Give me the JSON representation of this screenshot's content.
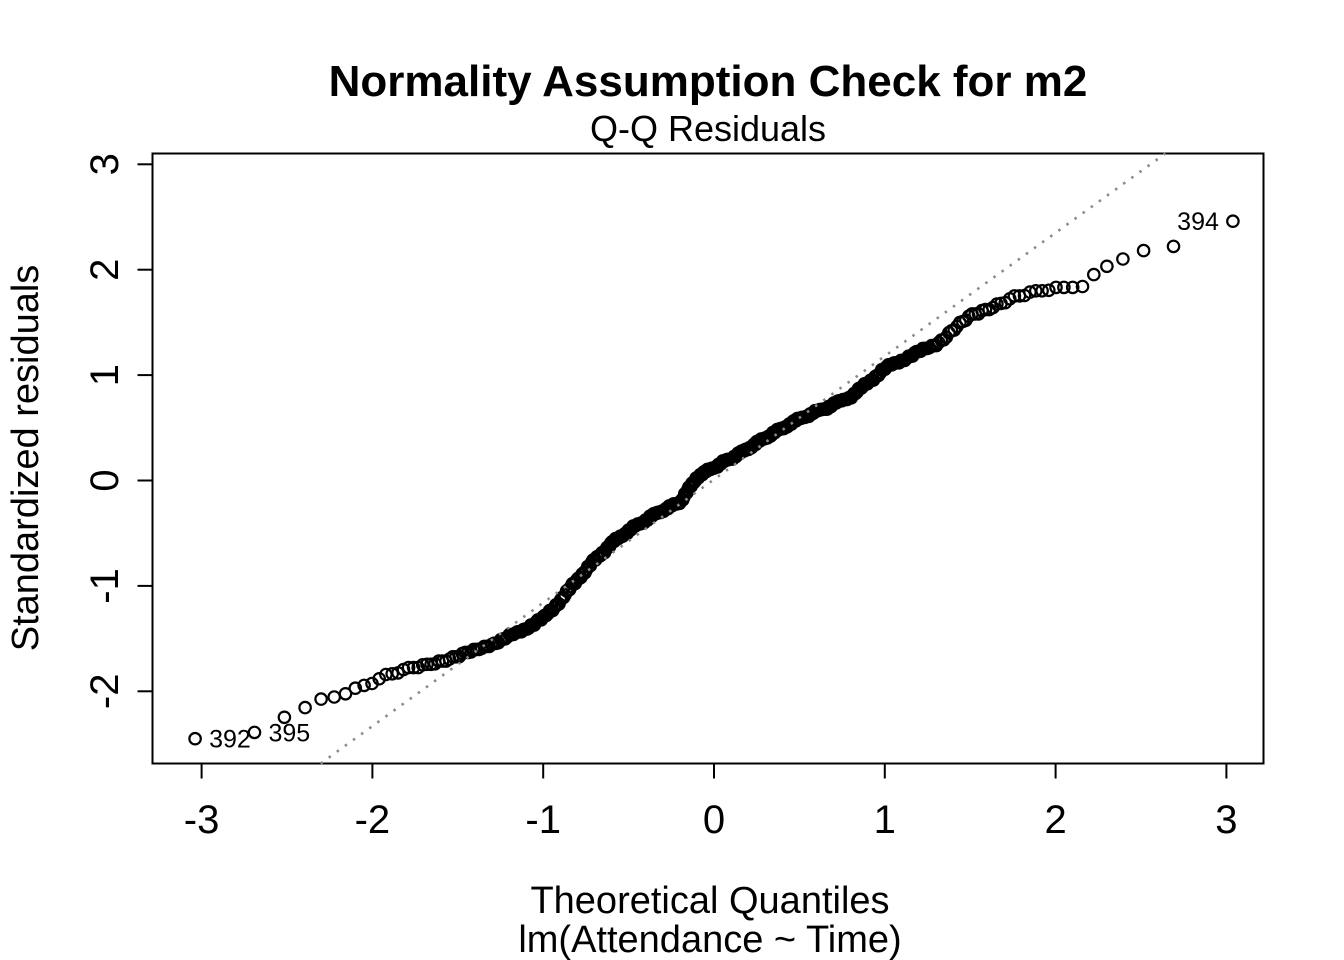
{
  "page": {
    "background": "#ffffff",
    "foreground": "#000000"
  },
  "chart_data": {
    "type": "scatter",
    "subtype": "qq-plot",
    "title": "Normality Assumption Check for m2",
    "subtitle": "Q-Q Residuals",
    "xlabel": "Theoretical Quantiles",
    "xlabel_line2": "lm(Attendance ~ Time)",
    "ylabel": "Standardized residuals",
    "x_ticks": [
      -3,
      -2,
      -1,
      0,
      1,
      2,
      3
    ],
    "y_ticks": [
      -2,
      -1,
      0,
      1,
      2,
      3
    ],
    "xlim": [
      -3.29,
      3.21
    ],
    "ylim": [
      -2.68,
      3.1
    ],
    "grid": false,
    "legend": null,
    "n_points": 420,
    "point_style": {
      "shape": "open-circle",
      "color": "#000000",
      "radius_px": 5.7,
      "stroke_px": 2.2
    },
    "reference_line": {
      "slope": 1.17,
      "intercept": 0.01,
      "style": "dotted",
      "color": "#8a8a8a"
    },
    "curve_anchors": [
      [
        -3.3,
        -2.49
      ],
      [
        -2.97,
        -2.45
      ],
      [
        -2.8,
        -2.42
      ],
      [
        -2.67,
        -2.39
      ],
      [
        -2.5,
        -2.22
      ],
      [
        -2.38,
        -2.15
      ],
      [
        -2.28,
        -2.06
      ],
      [
        -2.18,
        -2.02
      ],
      [
        -2.06,
        -1.95
      ],
      [
        -1.95,
        -1.87
      ],
      [
        -1.85,
        -1.82
      ],
      [
        -1.7,
        -1.76
      ],
      [
        -1.55,
        -1.69
      ],
      [
        -1.4,
        -1.62
      ],
      [
        -1.28,
        -1.54
      ],
      [
        -1.15,
        -1.45
      ],
      [
        -1.0,
        -1.31
      ],
      [
        -0.9,
        -1.14
      ],
      [
        -0.8,
        -0.94
      ],
      [
        -0.7,
        -0.76
      ],
      [
        -0.6,
        -0.6
      ],
      [
        -0.5,
        -0.48
      ],
      [
        -0.35,
        -0.33
      ],
      [
        -0.2,
        -0.21
      ],
      [
        -0.1,
        0.03
      ],
      [
        0.0,
        0.12
      ],
      [
        0.15,
        0.25
      ],
      [
        0.3,
        0.4
      ],
      [
        0.5,
        0.58
      ],
      [
        0.65,
        0.68
      ],
      [
        0.8,
        0.79
      ],
      [
        1.0,
        1.06
      ],
      [
        1.15,
        1.18
      ],
      [
        1.3,
        1.29
      ],
      [
        1.5,
        1.56
      ],
      [
        1.6,
        1.63
      ],
      [
        1.75,
        1.73
      ],
      [
        1.9,
        1.79
      ],
      [
        2.0,
        1.82
      ],
      [
        2.17,
        1.85
      ],
      [
        2.25,
        2.0
      ],
      [
        2.35,
        2.09
      ],
      [
        2.47,
        2.17
      ],
      [
        2.65,
        2.2
      ],
      [
        2.85,
        2.26
      ],
      [
        2.98,
        2.46
      ],
      [
        3.25,
        2.55
      ]
    ],
    "labeled_points": [
      {
        "label": "392",
        "q": -3.0,
        "r": -2.45,
        "label_side": "right"
      },
      {
        "label": "395",
        "q": -2.7,
        "r": -2.39,
        "label_side": "right"
      },
      {
        "label": "394",
        "q": 3.0,
        "r": 2.46,
        "label_side": "left"
      }
    ]
  }
}
